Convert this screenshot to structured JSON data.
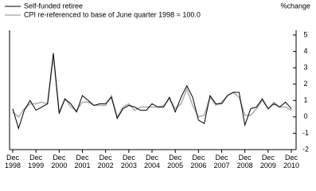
{
  "chart_data": {
    "type": "line",
    "y_label": "%change",
    "categories": [
      "Dec\n1998",
      null,
      null,
      null,
      "Dec\n1999",
      null,
      null,
      null,
      "Dec\n2000",
      null,
      null,
      null,
      "Dec\n2001",
      null,
      null,
      null,
      "Dec\n2002",
      null,
      null,
      null,
      "Dec\n2003",
      null,
      null,
      null,
      "Dec\n2004",
      null,
      null,
      null,
      "Dec\n2005",
      null,
      null,
      null,
      "Dec\n2006",
      null,
      null,
      null,
      "Dec\n2007",
      null,
      null,
      null,
      "Dec\n2008",
      null,
      null,
      null,
      "Dec\n2009",
      null,
      null,
      null,
      "Dec\n2010"
    ],
    "series": [
      {
        "name": "Self-funded retiree",
        "color": "#000000",
        "values": [
          0.5,
          -0.7,
          0.4,
          1.0,
          0.4,
          0.6,
          0.8,
          3.9,
          0.2,
          1.1,
          0.8,
          0.3,
          1.3,
          1.0,
          0.7,
          0.8,
          0.8,
          1.2,
          -0.1,
          0.5,
          0.7,
          0.6,
          0.4,
          0.4,
          0.8,
          0.6,
          0.6,
          1.2,
          0.3,
          1.2,
          1.9,
          1.2,
          -0.2,
          -0.4,
          1.3,
          0.8,
          0.8,
          1.3,
          1.5,
          1.5,
          -0.5,
          0.5,
          0.6,
          1.1,
          0.5,
          0.8,
          0.6,
          0.9,
          0.5
        ]
      },
      {
        "name": "CPI re-referenced to base of June quarter 1998 = 100.0",
        "color": "#b0b0b0",
        "values": [
          0.3,
          0.0,
          0.5,
          0.8,
          0.8,
          0.9,
          0.8,
          3.7,
          0.3,
          1.1,
          0.6,
          0.4,
          0.9,
          0.9,
          0.7,
          0.7,
          0.7,
          1.3,
          0.0,
          0.6,
          0.8,
          0.4,
          0.6,
          0.6,
          0.6,
          0.6,
          0.7,
          1.1,
          0.5,
          0.8,
          1.7,
          0.7,
          0.0,
          0.1,
          1.2,
          0.7,
          0.9,
          1.3,
          1.5,
          1.2,
          0.1,
          0.1,
          0.5,
          1.0,
          0.5,
          0.9,
          0.6,
          0.6,
          0.4
        ]
      }
    ],
    "ylim": [
      -2,
      5
    ],
    "yticks": [
      -2,
      -1,
      0,
      1,
      2,
      3,
      4,
      5
    ]
  }
}
